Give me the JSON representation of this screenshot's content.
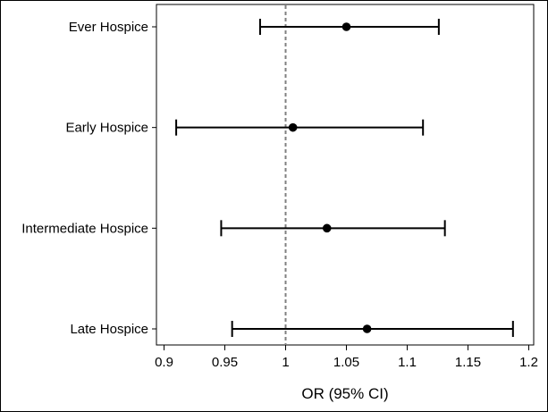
{
  "chart_data": {
    "type": "forest",
    "xlabel": "OR (95% CI)",
    "xlim": [
      0.89,
      1.2
    ],
    "xticks": [
      0.9,
      0.95,
      1,
      1.05,
      1.1,
      1.15,
      1.2
    ],
    "xtick_labels": [
      "0.9",
      "0.95",
      "1",
      "1.05",
      "1.1",
      "1.15",
      "1.2"
    ],
    "reference_line": 1,
    "grid": false,
    "rows": [
      {
        "label": "Ever Hospice",
        "or": 1.05,
        "lower": 0.979,
        "upper": 1.126
      },
      {
        "label": "Early Hospice",
        "or": 1.006,
        "lower": 0.91,
        "upper": 1.113
      },
      {
        "label": "Intermediate Hospice",
        "or": 1.034,
        "lower": 0.947,
        "upper": 1.131
      },
      {
        "label": "Late Hospice",
        "or": 1.067,
        "lower": 0.956,
        "upper": 1.187
      }
    ]
  },
  "colors": {
    "point": "#000000",
    "error_bar": "#000000",
    "reference_line": "#808080",
    "frame": "#000000",
    "background": "#ffffff"
  }
}
